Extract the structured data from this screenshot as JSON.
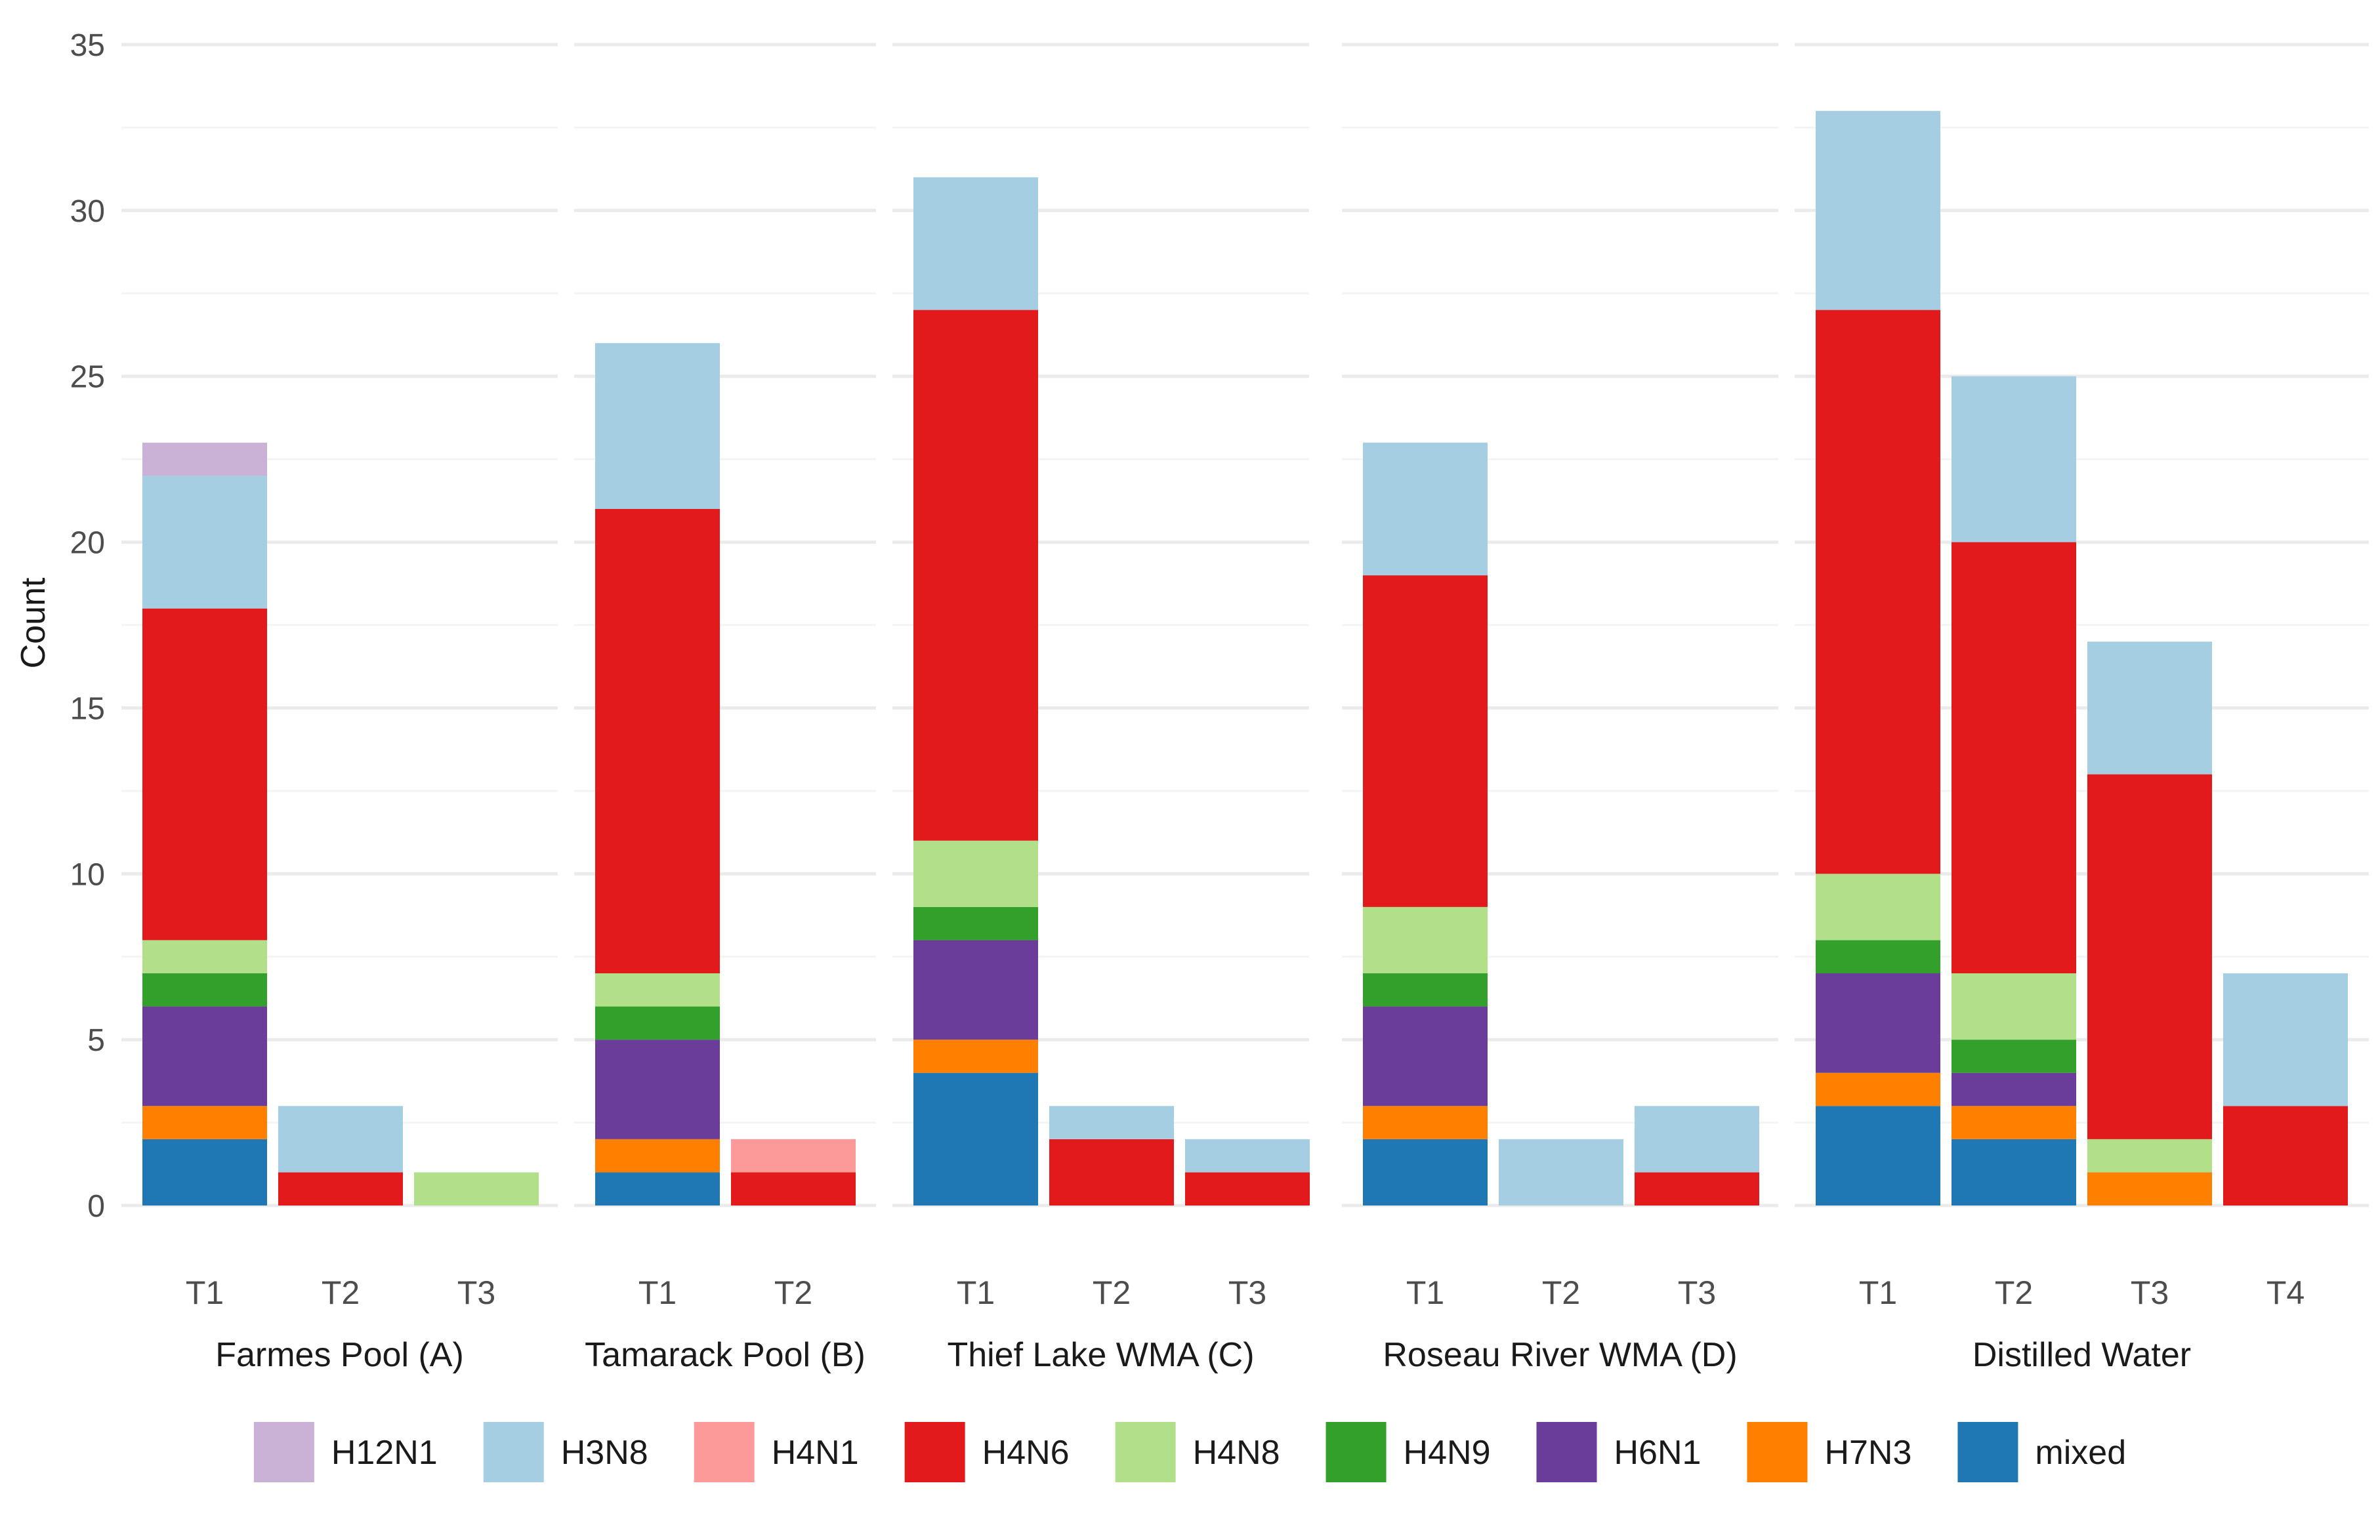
{
  "chart_data": {
    "type": "bar",
    "stacked": true,
    "faceted": true,
    "title": "",
    "xlabel": "",
    "ylabel": "Count",
    "ylim": [
      0,
      35
    ],
    "yticks": [
      0,
      5,
      10,
      15,
      20,
      25,
      30,
      35
    ],
    "grid": true,
    "legend_position": "bottom",
    "stack_order": [
      "mixed",
      "H7N3",
      "H6N1",
      "H4N9",
      "H4N8",
      "H4N6",
      "H4N1",
      "H3N8",
      "H12N1"
    ],
    "legend": [
      {
        "name": "H12N1",
        "color": "#cab2d6"
      },
      {
        "name": "H3N8",
        "color": "#a6cee3"
      },
      {
        "name": "H4N1",
        "color": "#fb9a99"
      },
      {
        "name": "H4N6",
        "color": "#e31a1c"
      },
      {
        "name": "H4N8",
        "color": "#b2df8a"
      },
      {
        "name": "H4N9",
        "color": "#33a02c"
      },
      {
        "name": "H6N1",
        "color": "#6a3d9a"
      },
      {
        "name": "H7N3",
        "color": "#ff7f00"
      },
      {
        "name": "mixed",
        "color": "#1f78b4"
      }
    ],
    "facets": [
      {
        "name": "Farmes Pool (A)",
        "bars": [
          {
            "label": "T1",
            "segments": {
              "mixed": 2,
              "H7N3": 1,
              "H6N1": 3,
              "H4N9": 1,
              "H4N8": 1,
              "H4N6": 10,
              "H3N8": 4,
              "H12N1": 1
            }
          },
          {
            "label": "T2",
            "segments": {
              "H4N6": 1,
              "H3N8": 2
            }
          },
          {
            "label": "T3",
            "segments": {
              "H4N8": 1
            }
          }
        ]
      },
      {
        "name": "Tamarack Pool (B)",
        "bars": [
          {
            "label": "T1",
            "segments": {
              "mixed": 1,
              "H7N3": 1,
              "H6N1": 3,
              "H4N9": 1,
              "H4N8": 1,
              "H4N6": 14,
              "H3N8": 5
            }
          },
          {
            "label": "T2",
            "segments": {
              "H4N6": 1,
              "H4N1": 1
            }
          }
        ]
      },
      {
        "name": "Thief Lake WMA (C)",
        "bars": [
          {
            "label": "T1",
            "segments": {
              "mixed": 4,
              "H7N3": 1,
              "H6N1": 3,
              "H4N9": 1,
              "H4N8": 2,
              "H4N6": 16,
              "H3N8": 4
            }
          },
          {
            "label": "T2",
            "segments": {
              "H4N6": 2,
              "H3N8": 1
            }
          },
          {
            "label": "T3",
            "segments": {
              "H4N6": 1,
              "H3N8": 1
            }
          }
        ]
      },
      {
        "name": "Roseau River WMA (D)",
        "bars": [
          {
            "label": "T1",
            "segments": {
              "mixed": 2,
              "H7N3": 1,
              "H6N1": 3,
              "H4N9": 1,
              "H4N8": 2,
              "H4N6": 10,
              "H3N8": 4
            }
          },
          {
            "label": "T2",
            "segments": {
              "H3N8": 2
            }
          },
          {
            "label": "T3",
            "segments": {
              "H4N6": 1,
              "H3N8": 2
            }
          }
        ]
      },
      {
        "name": "Distilled Water",
        "bars": [
          {
            "label": "T1",
            "segments": {
              "mixed": 3,
              "H7N3": 1,
              "H6N1": 3,
              "H4N9": 1,
              "H4N8": 2,
              "H4N6": 17,
              "H3N8": 6
            }
          },
          {
            "label": "T2",
            "segments": {
              "mixed": 2,
              "H7N3": 1,
              "H6N1": 1,
              "H4N9": 1,
              "H4N8": 2,
              "H4N6": 13,
              "H3N8": 5
            }
          },
          {
            "label": "T3",
            "segments": {
              "H7N3": 1,
              "H4N8": 1,
              "H4N6": 11,
              "H3N8": 4
            }
          },
          {
            "label": "T4",
            "segments": {
              "H4N6": 3,
              "H3N8": 4
            }
          }
        ]
      }
    ]
  }
}
